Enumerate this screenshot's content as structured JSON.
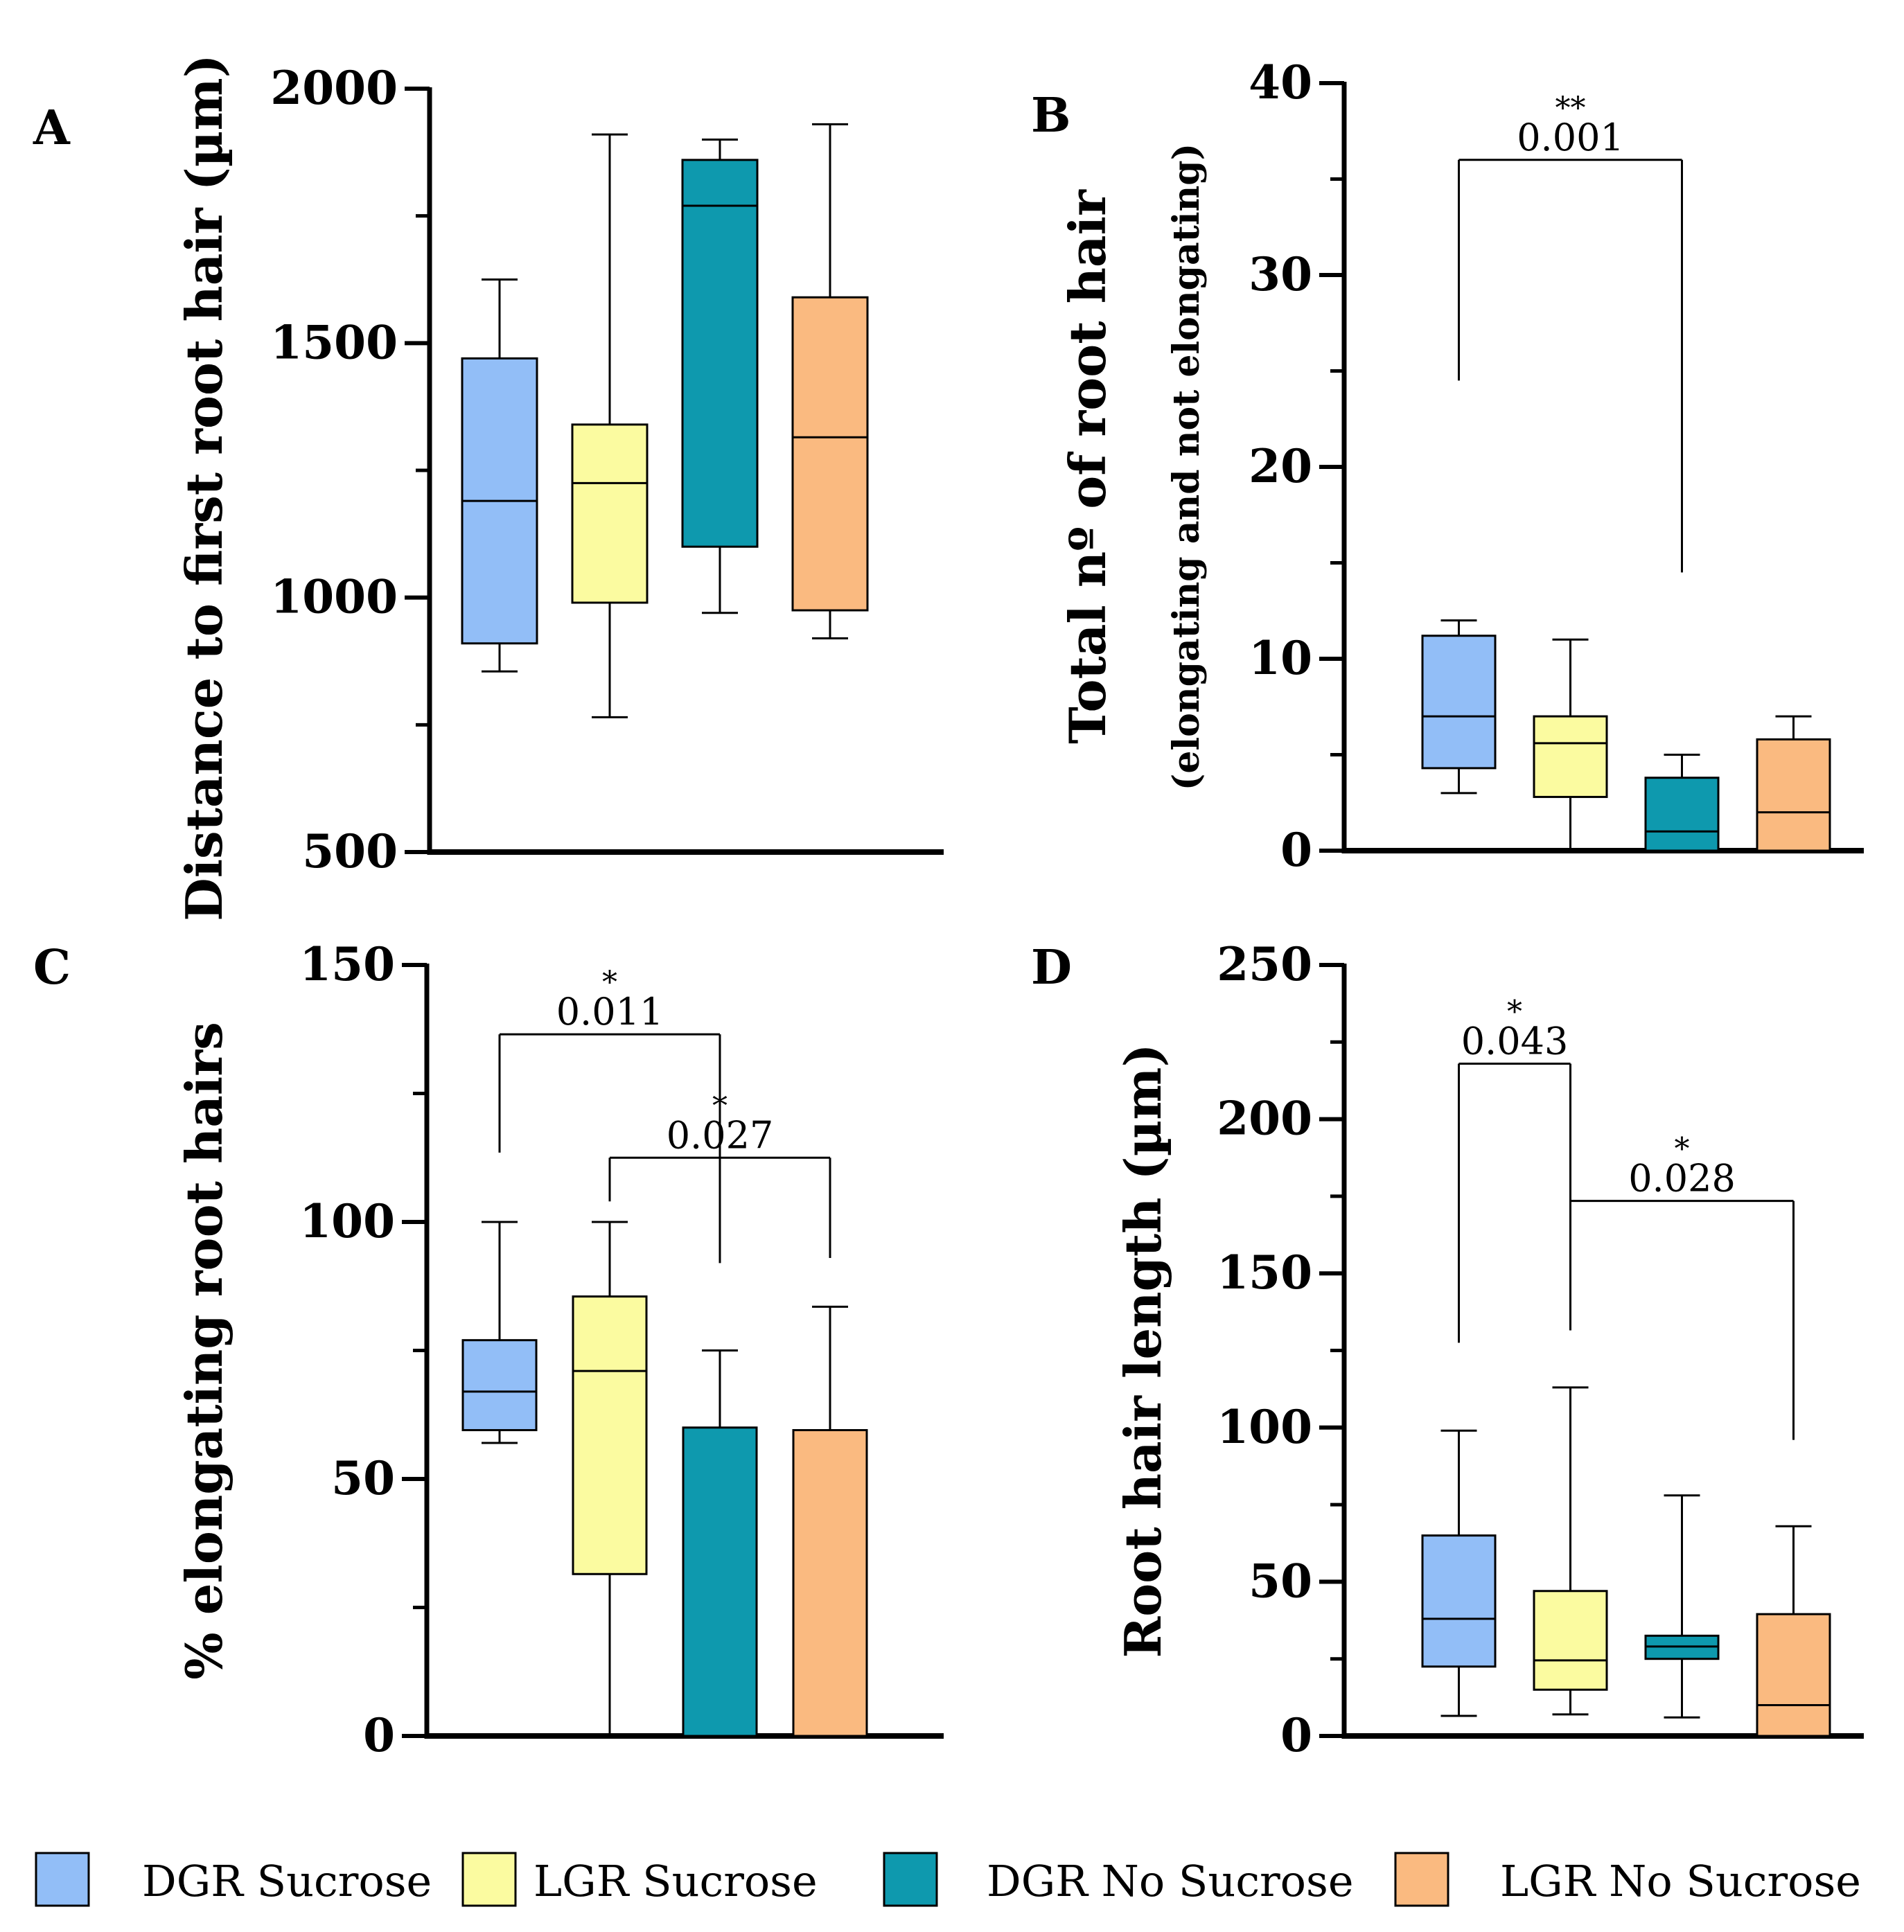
{
  "colors": {
    "dgr_sucrose": "#92BEF7",
    "lgr_sucrose": "#FBFBA0",
    "dgr_no_sucrose": "#0E99AE",
    "lgr_no_sucrose": "#FABA80",
    "axis": "#000000"
  },
  "legend": [
    {
      "label": "DGR Sucrose",
      "color": "#92BEF7"
    },
    {
      "label": "LGR Sucrose",
      "color": "#FBFBA0"
    },
    {
      "label": "DGR No Sucrose",
      "color": "#0E99AE"
    },
    {
      "label": "LGR No Sucrose",
      "color": "#FABA80"
    }
  ],
  "chart_data": [
    {
      "panel": "A",
      "type": "box",
      "ylabel": "Distance to first root hair (µm)",
      "ylabel_sub": "",
      "ylim": [
        500,
        2000
      ],
      "yticks": [
        500,
        1000,
        1500,
        2000
      ],
      "ytick_labels": [
        "500",
        "1000",
        "1500",
        "2000"
      ],
      "minor_ticks": [
        750,
        1250,
        1750
      ],
      "categories": [
        "DGR Sucrose",
        "LGR Sucrose",
        "DGR No Sucrose",
        "LGR No Sucrose"
      ],
      "boxes": [
        {
          "min": 855,
          "q1": 910,
          "median": 1190,
          "q3": 1470,
          "max": 1625
        },
        {
          "min": 765,
          "q1": 990,
          "median": 1225,
          "q3": 1340,
          "max": 1910
        },
        {
          "min": 970,
          "q1": 1100,
          "median": 1770,
          "q3": 1860,
          "max": 1900
        },
        {
          "min": 920,
          "q1": 975,
          "median": 1315,
          "q3": 1590,
          "max": 1930
        }
      ],
      "significance": []
    },
    {
      "panel": "B",
      "type": "box",
      "ylabel": "Total nº of root hair",
      "ylabel_sub": "(elongating and not elongating)",
      "ylim": [
        0,
        40
      ],
      "yticks": [
        0,
        10,
        20,
        30,
        40
      ],
      "ytick_labels": [
        "0",
        "10",
        "20",
        "30",
        "40"
      ],
      "minor_ticks": [
        5,
        15,
        25,
        35
      ],
      "categories": [
        "DGR Sucrose",
        "LGR Sucrose",
        "DGR No Sucrose",
        "LGR No Sucrose"
      ],
      "boxes": [
        {
          "min": 3,
          "q1": 4.3,
          "median": 7,
          "q3": 11.2,
          "max": 12
        },
        {
          "min": 0,
          "q1": 2.8,
          "median": 5.6,
          "q3": 7,
          "max": 11
        },
        {
          "min": 0,
          "q1": 0,
          "median": 1,
          "q3": 3.8,
          "max": 5
        },
        {
          "min": 0,
          "q1": 0,
          "median": 2,
          "q3": 5.8,
          "max": 7
        }
      ],
      "significance": [
        {
          "from": 0,
          "to": 2,
          "y": 36,
          "left_drop": 24.5,
          "right_drop": 14.5,
          "stars": "**",
          "p": "0.001"
        }
      ]
    },
    {
      "panel": "C",
      "type": "box",
      "ylabel": "% elongating root hairs",
      "ylabel_sub": "",
      "ylim": [
        0,
        150
      ],
      "yticks": [
        0,
        50,
        100,
        150
      ],
      "ytick_labels": [
        "0",
        "50",
        "100",
        "150"
      ],
      "minor_ticks": [
        25,
        75,
        125
      ],
      "categories": [
        "DGR Sucrose",
        "LGR Sucrose",
        "DGR No Sucrose",
        "LGR No Sucrose"
      ],
      "boxes": [
        {
          "min": 57,
          "q1": 59.5,
          "median": 67,
          "q3": 77,
          "max": 100
        },
        {
          "min": 0,
          "q1": 31.5,
          "median": 71,
          "q3": 85.5,
          "max": 100
        },
        {
          "min": 0,
          "q1": 0,
          "median": 0,
          "q3": 60,
          "max": 75
        },
        {
          "min": 0,
          "q1": 0,
          "median": 0,
          "q3": 59.5,
          "max": 83.5
        }
      ],
      "significance": [
        {
          "from": 0,
          "to": 2,
          "y": 136.5,
          "left_drop": 113.5,
          "right_drop": 92,
          "stars": "*",
          "p": "0.011"
        },
        {
          "from": 1,
          "to": 3,
          "y": 112.5,
          "left_drop": 104,
          "right_drop": 93,
          "stars": "*",
          "p": "0.027"
        }
      ]
    },
    {
      "panel": "D",
      "type": "box",
      "ylabel": "Root hair length (µm)",
      "ylabel_sub": "",
      "ylim": [
        0,
        250
      ],
      "yticks": [
        0,
        50,
        100,
        150,
        200,
        250
      ],
      "ytick_labels": [
        "0",
        "50",
        "100",
        "150",
        "200",
        "250"
      ],
      "minor_ticks": [
        25,
        75,
        125,
        175,
        225
      ],
      "categories": [
        "DGR Sucrose",
        "LGR Sucrose",
        "DGR No Sucrose",
        "LGR No Sucrose"
      ],
      "boxes": [
        {
          "min": 6.5,
          "q1": 22.5,
          "median": 38,
          "q3": 65,
          "max": 99
        },
        {
          "min": 7,
          "q1": 15,
          "median": 24.5,
          "q3": 47,
          "max": 113
        },
        {
          "min": 6,
          "q1": 25,
          "median": 29,
          "q3": 32.5,
          "max": 78
        },
        {
          "min": 0,
          "q1": 0,
          "median": 10,
          "q3": 39.5,
          "max": 68
        }
      ],
      "significance": [
        {
          "from": 0,
          "to": 1,
          "y": 218,
          "left_drop": 127.5,
          "right_drop": 131.5,
          "stars": "*",
          "p": "0.043"
        },
        {
          "from": 1,
          "to": 3,
          "y": 173.5,
          "left_drop": 145.5,
          "right_drop": 96,
          "stars": "*",
          "p": "0.028"
        }
      ]
    }
  ]
}
